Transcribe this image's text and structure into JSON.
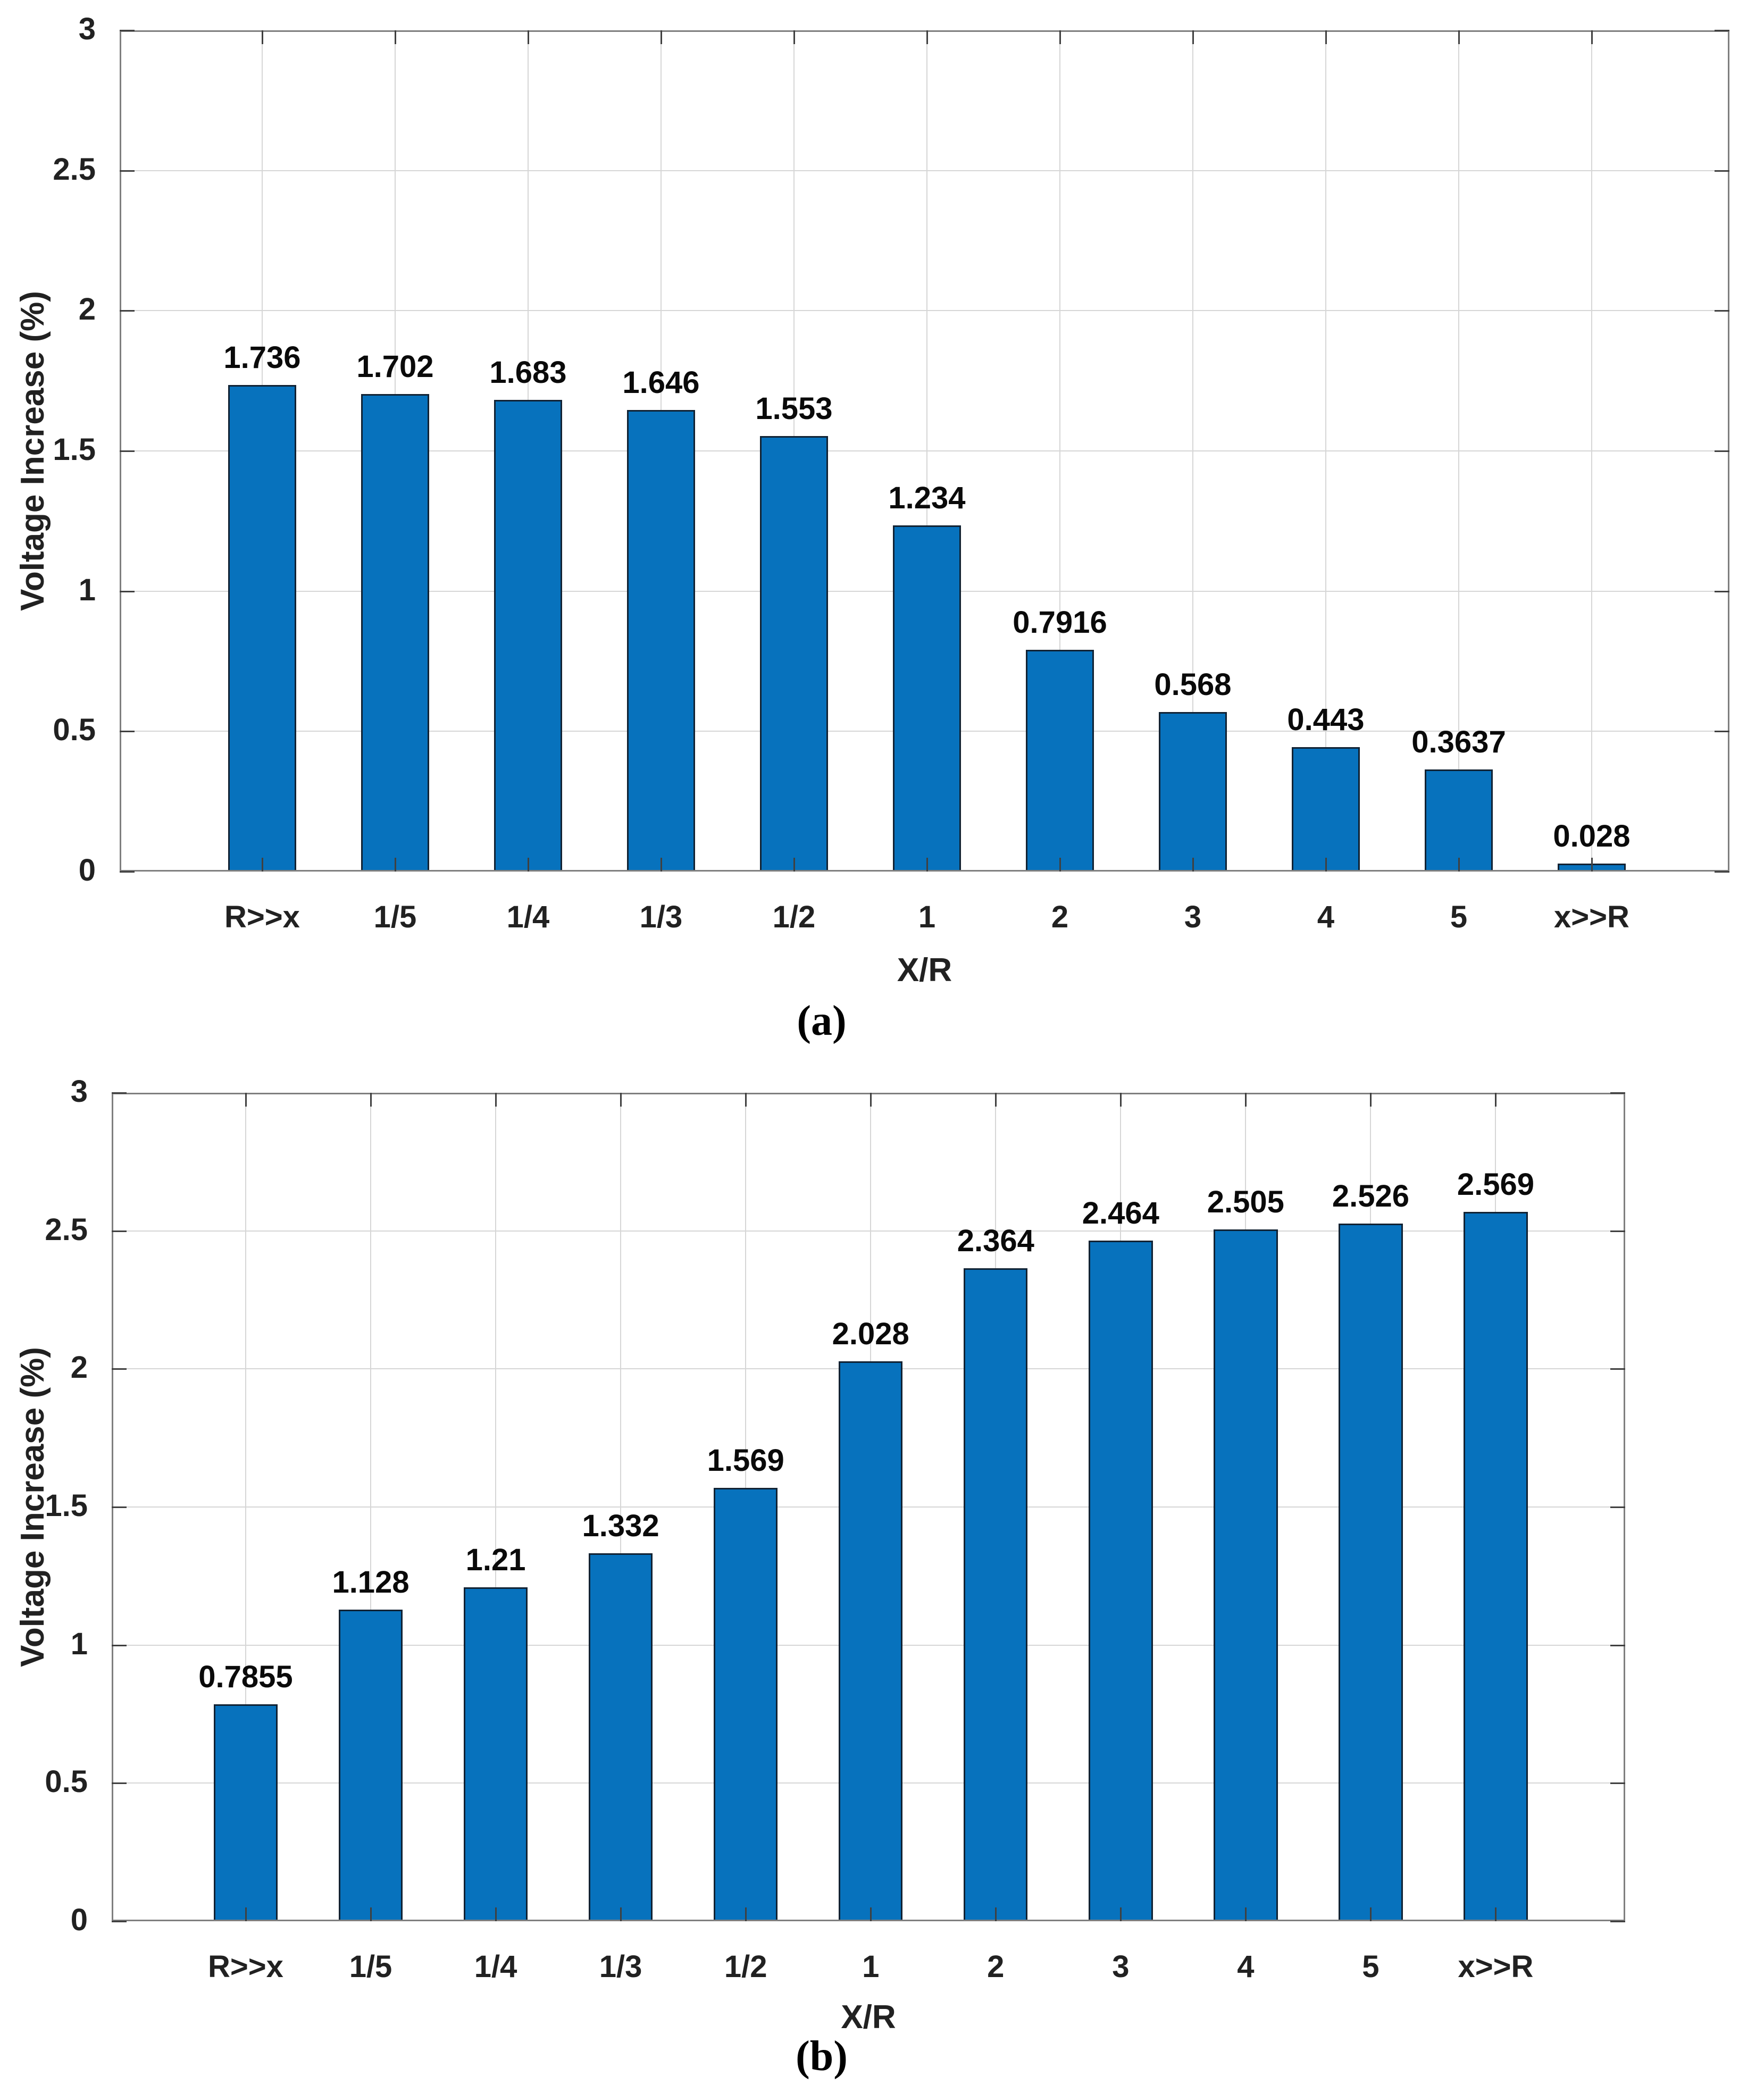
{
  "colors": {
    "bar_fill": "#0772BD",
    "bar_edge": "#112233",
    "grid": "#D6D6D6",
    "spine": "#7F7F7F",
    "tick": "#404040",
    "text": "#212121"
  },
  "chart_data": [
    {
      "type": "bar",
      "caption": "(a)",
      "xlabel": "X/R",
      "ylabel": "Voltage Increase (%)",
      "categories": [
        "R>>x",
        "1/5",
        "1/4",
        "1/3",
        "1/2",
        "1",
        "2",
        "3",
        "4",
        "5",
        "x>>R"
      ],
      "values": [
        1.736,
        1.702,
        1.683,
        1.646,
        1.553,
        1.234,
        0.7916,
        0.568,
        0.443,
        0.3637,
        0.028
      ],
      "value_labels": [
        "1.736",
        "1.702",
        "1.683",
        "1.646",
        "1.553",
        "1.234",
        "0.7916",
        "0.568",
        "0.443",
        "0.3637",
        "0.028"
      ],
      "ylim": [
        0,
        3
      ],
      "y_ticks": [
        0,
        0.5,
        1,
        1.5,
        2,
        2.5,
        3
      ],
      "y_tick_labels": [
        "0",
        "0.5",
        "1",
        "1.5",
        "2",
        "2.5",
        "3"
      ],
      "grid": true,
      "legend": null
    },
    {
      "type": "bar",
      "caption": "(b)",
      "xlabel": "X/R",
      "ylabel": "Voltage Increase (%)",
      "categories": [
        "R>>x",
        "1/5",
        "1/4",
        "1/3",
        "1/2",
        "1",
        "2",
        "3",
        "4",
        "5",
        "x>>R"
      ],
      "values": [
        0.7855,
        1.128,
        1.21,
        1.332,
        1.569,
        2.028,
        2.364,
        2.464,
        2.505,
        2.526,
        2.569
      ],
      "value_labels": [
        "0.7855",
        "1.128",
        "1.21",
        "1.332",
        "1.569",
        "2.028",
        "2.364",
        "2.464",
        "2.505",
        "2.526",
        "2.569"
      ],
      "ylim": [
        0,
        3
      ],
      "y_ticks": [
        0,
        0.5,
        1,
        1.5,
        2,
        2.5,
        3
      ],
      "y_tick_labels": [
        "0",
        "0.5",
        "1",
        "1.5",
        "2",
        "2.5",
        "3"
      ],
      "grid": true,
      "legend": null
    }
  ]
}
